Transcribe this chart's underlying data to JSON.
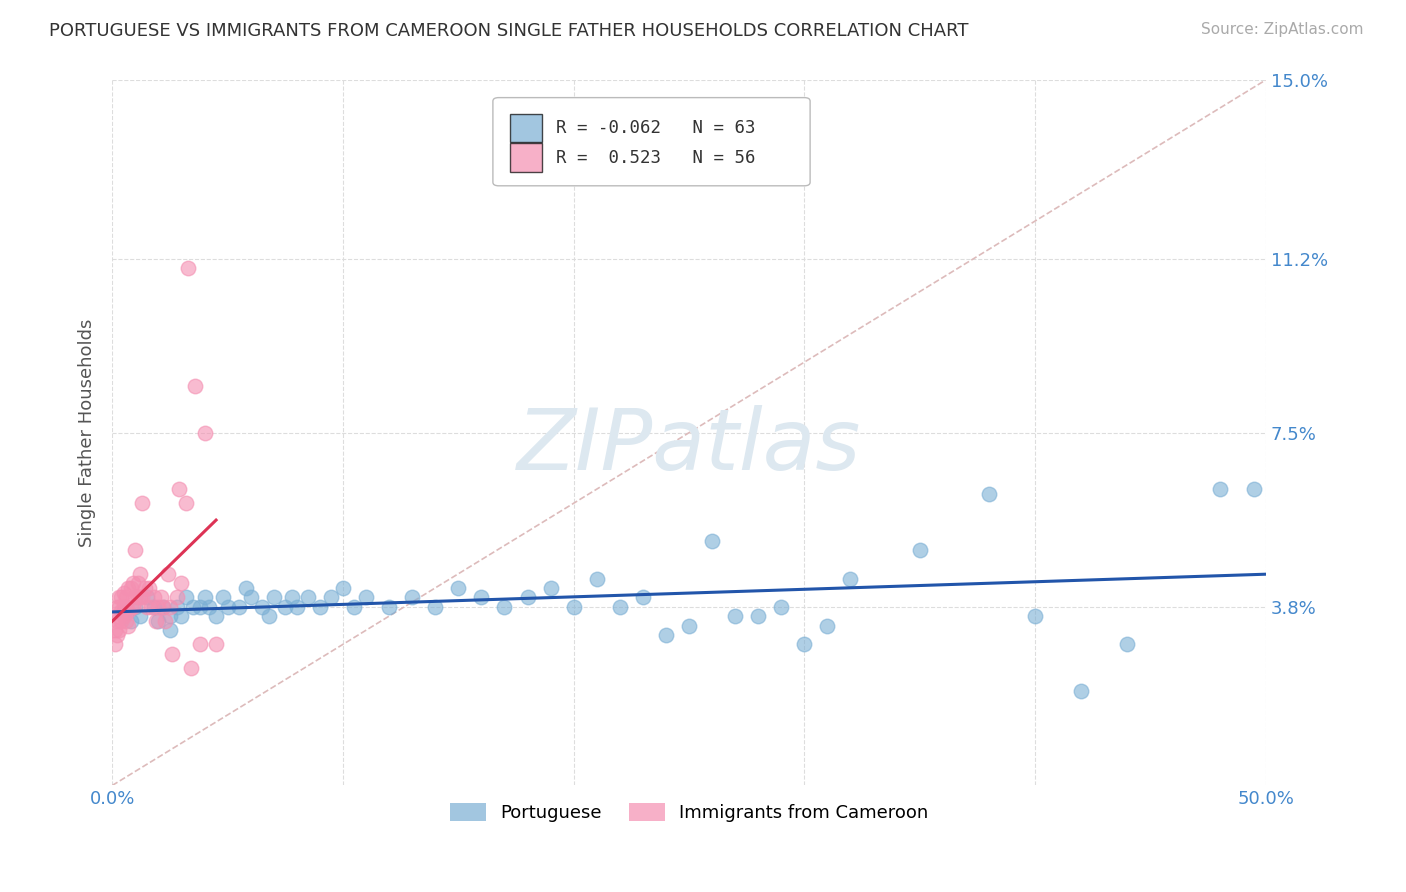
{
  "title": "PORTUGUESE VS IMMIGRANTS FROM CAMEROON SINGLE FATHER HOUSEHOLDS CORRELATION CHART",
  "source": "Source: ZipAtlas.com",
  "ylabel": "Single Father Households",
  "xlim": [
    0,
    0.5
  ],
  "ylim": [
    0,
    0.15
  ],
  "ytick_vals": [
    0.0,
    0.038,
    0.075,
    0.112,
    0.15
  ],
  "ytick_labels_right": [
    "3.8%",
    "7.5%",
    "11.2%",
    "15.0%"
  ],
  "ytick_vals_right": [
    0.038,
    0.075,
    0.112,
    0.15
  ],
  "xtick_vals": [
    0.0,
    0.1,
    0.2,
    0.3,
    0.4,
    0.5
  ],
  "xtick_labels": [
    "0.0%",
    "",
    "",
    "",
    "",
    "50.0%"
  ],
  "legend_labels": [
    "Portuguese",
    "Immigrants from Cameroon"
  ],
  "R_blue": -0.062,
  "N_blue": 63,
  "R_pink": 0.523,
  "N_pink": 56,
  "blue_color": "#7bafd4",
  "pink_color": "#f48fb1",
  "watermark_text": "ZIPatlas",
  "watermark_color": "#dde8f0",
  "blue_scatter_x": [
    0.005,
    0.008,
    0.01,
    0.012,
    0.015,
    0.018,
    0.02,
    0.022,
    0.025,
    0.025,
    0.028,
    0.03,
    0.032,
    0.035,
    0.038,
    0.04,
    0.042,
    0.045,
    0.048,
    0.05,
    0.055,
    0.058,
    0.06,
    0.065,
    0.068,
    0.07,
    0.075,
    0.078,
    0.08,
    0.085,
    0.09,
    0.095,
    0.1,
    0.105,
    0.11,
    0.12,
    0.13,
    0.14,
    0.15,
    0.16,
    0.17,
    0.18,
    0.19,
    0.2,
    0.21,
    0.22,
    0.23,
    0.24,
    0.25,
    0.26,
    0.27,
    0.28,
    0.29,
    0.3,
    0.31,
    0.32,
    0.35,
    0.38,
    0.4,
    0.42,
    0.44,
    0.48,
    0.495
  ],
  "blue_scatter_y": [
    0.037,
    0.035,
    0.038,
    0.036,
    0.04,
    0.038,
    0.035,
    0.038,
    0.036,
    0.033,
    0.038,
    0.036,
    0.04,
    0.038,
    0.038,
    0.04,
    0.038,
    0.036,
    0.04,
    0.038,
    0.038,
    0.042,
    0.04,
    0.038,
    0.036,
    0.04,
    0.038,
    0.04,
    0.038,
    0.04,
    0.038,
    0.04,
    0.042,
    0.038,
    0.04,
    0.038,
    0.04,
    0.038,
    0.042,
    0.04,
    0.038,
    0.04,
    0.042,
    0.038,
    0.044,
    0.038,
    0.04,
    0.032,
    0.034,
    0.052,
    0.036,
    0.036,
    0.038,
    0.03,
    0.034,
    0.044,
    0.05,
    0.062,
    0.036,
    0.02,
    0.03,
    0.063,
    0.063
  ],
  "pink_scatter_x": [
    0.001,
    0.001,
    0.002,
    0.002,
    0.002,
    0.003,
    0.003,
    0.003,
    0.003,
    0.004,
    0.004,
    0.004,
    0.005,
    0.005,
    0.005,
    0.006,
    0.006,
    0.006,
    0.007,
    0.007,
    0.007,
    0.008,
    0.008,
    0.009,
    0.009,
    0.01,
    0.01,
    0.011,
    0.011,
    0.012,
    0.012,
    0.013,
    0.013,
    0.014,
    0.015,
    0.016,
    0.017,
    0.018,
    0.019,
    0.02,
    0.021,
    0.022,
    0.023,
    0.024,
    0.025,
    0.026,
    0.028,
    0.029,
    0.03,
    0.032,
    0.033,
    0.034,
    0.036,
    0.038,
    0.04,
    0.045
  ],
  "pink_scatter_y": [
    0.03,
    0.033,
    0.032,
    0.035,
    0.038,
    0.033,
    0.036,
    0.038,
    0.04,
    0.035,
    0.037,
    0.04,
    0.036,
    0.038,
    0.041,
    0.035,
    0.038,
    0.04,
    0.034,
    0.037,
    0.042,
    0.038,
    0.042,
    0.038,
    0.043,
    0.04,
    0.05,
    0.04,
    0.043,
    0.04,
    0.045,
    0.04,
    0.06,
    0.042,
    0.038,
    0.042,
    0.038,
    0.04,
    0.035,
    0.038,
    0.04,
    0.038,
    0.035,
    0.045,
    0.038,
    0.028,
    0.04,
    0.063,
    0.043,
    0.06,
    0.11,
    0.025,
    0.085,
    0.03,
    0.075,
    0.03
  ],
  "diag_line_color": "#ddbbbb",
  "grid_color": "#dddddd",
  "blue_line_color": "#2255aa",
  "pink_line_color": "#dd3355"
}
